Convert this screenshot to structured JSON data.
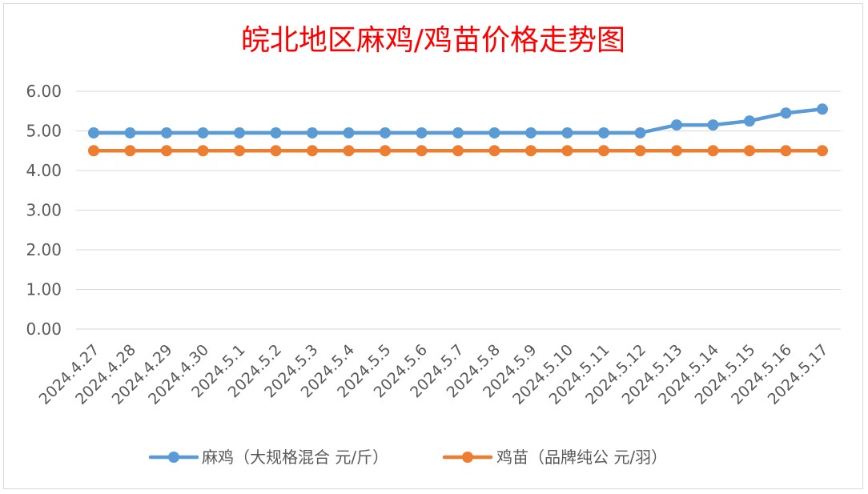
{
  "chart_data": {
    "type": "line",
    "title": "皖北地区麻鸡/鸡苗价格走势图",
    "categories": [
      "2024.4.27",
      "2024.4.28",
      "2024.4.29",
      "2024.4.30",
      "2024.5.1",
      "2024.5.2",
      "2024.5.3",
      "2024.5.4",
      "2024.5.5",
      "2024.5.6",
      "2024.5.7",
      "2024.5.8",
      "2024.5.9",
      "2024.5.10",
      "2024.5.11",
      "2024.5.12",
      "2024.5.13",
      "2024.5.14",
      "2024.5.15",
      "2024.5.16",
      "2024.5.17"
    ],
    "series": [
      {
        "name": "麻鸡（大规格混合 元/斤）",
        "color": "#5b9bd5",
        "values": [
          4.95,
          4.95,
          4.95,
          4.95,
          4.95,
          4.95,
          4.95,
          4.95,
          4.95,
          4.95,
          4.95,
          4.95,
          4.95,
          4.95,
          4.95,
          4.95,
          5.15,
          5.15,
          5.25,
          5.45,
          5.55
        ]
      },
      {
        "name": "鸡苗（品牌纯公 元/羽）",
        "color": "#ed7d31",
        "values": [
          4.5,
          4.5,
          4.5,
          4.5,
          4.5,
          4.5,
          4.5,
          4.5,
          4.5,
          4.5,
          4.5,
          4.5,
          4.5,
          4.5,
          4.5,
          4.5,
          4.5,
          4.5,
          4.5,
          4.5,
          4.5
        ]
      }
    ],
    "yticks": [
      "0.00",
      "1.00",
      "2.00",
      "3.00",
      "4.00",
      "5.00",
      "6.00"
    ],
    "ylim": [
      0,
      6
    ],
    "xlabel": "",
    "ylabel": "",
    "grid": true,
    "legend": "bottom"
  }
}
